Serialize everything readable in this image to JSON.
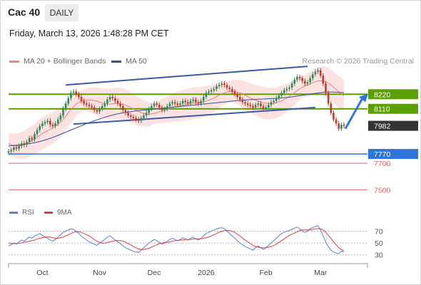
{
  "header": {
    "instrument": "Cac 40",
    "timeframe": "DAILY",
    "datetime": "Friday, March 13, 2026 1:48:28 PM CET"
  },
  "legend": {
    "ma20": "MA 20 + Bollinger Bands",
    "ma50": "MA 50",
    "credit": "Research © 2026 Trading Central"
  },
  "rsi_legend": {
    "rsi": "RSI",
    "ma": "9MA"
  },
  "colors": {
    "candle_up": "#2e8b57",
    "candle_down": "#c0392b",
    "bollinger_fill": "#fde2e2",
    "ma20": "#f08080",
    "ma50": "#2f5597",
    "channel": "#3a5ba9",
    "support_resistance_green": "#5aa000",
    "pivot_blue": "#2e75d8",
    "last_price_tag": "#333333",
    "target_red": "#e06666",
    "rsi": "#5b7fd1",
    "rsi_ma": "#e23b3b"
  },
  "chart_data": [
    {
      "type": "candlestick",
      "title": "Cac 40",
      "x_tick_labels": [
        "Oct",
        "Nov",
        "Dec",
        "2026",
        "Feb",
        "Mar"
      ],
      "y_range_approx": [
        7400,
        8420
      ],
      "last_price": 7982,
      "levels": [
        {
          "value": 8220,
          "label": "8220",
          "style": "green-band"
        },
        {
          "value": 8110,
          "label": "8110",
          "style": "green-band"
        },
        {
          "value": 7982,
          "label": "7982",
          "style": "last-price"
        },
        {
          "value": 7770,
          "label": "7770",
          "style": "pivot"
        },
        {
          "value": 7700,
          "label": "7700",
          "style": "target"
        },
        {
          "value": 7500,
          "label": "7500",
          "style": "target"
        }
      ],
      "series": [
        {
          "name": "Close",
          "values": [
            7790,
            7800,
            7820,
            7810,
            7830,
            7850,
            7840,
            7860,
            7890,
            7880,
            7920,
            7950,
            7980,
            8000,
            8010,
            8020,
            7990,
            7980,
            8000,
            8030,
            8060,
            8110,
            8150,
            8190,
            8230,
            8240,
            8220,
            8200,
            8170,
            8150,
            8140,
            8130,
            8120,
            8100,
            8090,
            8110,
            8130,
            8150,
            8180,
            8200,
            8190,
            8170,
            8150,
            8130,
            8100,
            8080,
            8060,
            8050,
            8040,
            8030,
            8020,
            8040,
            8060,
            8080,
            8110,
            8130,
            8150,
            8140,
            8120,
            8100,
            8110,
            8130,
            8150,
            8160,
            8150,
            8140,
            8150,
            8170,
            8160,
            8150,
            8170,
            8180,
            8160,
            8150,
            8170,
            8200,
            8230,
            8240,
            8250,
            8260,
            8280,
            8290,
            8300,
            8290,
            8270,
            8260,
            8240,
            8220,
            8200,
            8180,
            8160,
            8150,
            8140,
            8130,
            8120,
            8140,
            8150,
            8130,
            8110,
            8120,
            8140,
            8160,
            8170,
            8190,
            8210,
            8230,
            8250,
            8260,
            8270,
            8300,
            8330,
            8350,
            8340,
            8320,
            8300,
            8310,
            8340,
            8370,
            8390,
            8400,
            8360,
            8300,
            8230,
            8150,
            8080,
            8030,
            8000,
            7960,
            7990,
            7982
          ]
        },
        {
          "name": "MA 20",
          "values": [
            7850,
            7840,
            7835,
            7830,
            7830,
            7835,
            7840,
            7850,
            7860,
            7870,
            7880,
            7895,
            7910,
            7925,
            7935,
            7945,
            7955,
            7965,
            7980,
            7995,
            8010,
            8030,
            8055,
            8080,
            8105,
            8125,
            8145,
            8160,
            8170,
            8175,
            8178,
            8178,
            8176,
            8172,
            8168,
            8162,
            8156,
            8150,
            8146,
            8145,
            8148,
            8150,
            8150,
            8148,
            8144,
            8138,
            8130,
            8120,
            8110,
            8100,
            8090,
            8082,
            8076,
            8072,
            8070,
            8072,
            8076,
            8082,
            8088,
            8094,
            8100,
            8106,
            8112,
            8118,
            8124,
            8128,
            8132,
            8136,
            8140,
            8144,
            8148,
            8152,
            8154,
            8156,
            8158,
            8162,
            8168,
            8175,
            8183,
            8192,
            8202,
            8212,
            8222,
            8230,
            8236,
            8240,
            8242,
            8240,
            8236,
            8230,
            8222,
            8212,
            8202,
            8192,
            8183,
            8175,
            8168,
            8162,
            8156,
            8152,
            8150,
            8150,
            8152,
            8156,
            8162,
            8170,
            8180,
            8192,
            8205,
            8218,
            8232,
            8246,
            8260,
            8272,
            8282,
            8290,
            8298,
            8306,
            8314,
            8320,
            8322,
            8320,
            8314,
            8304,
            8290,
            8274,
            8256,
            8238,
            8222,
            8208
          ]
        },
        {
          "name": "MA 50",
          "values": [
            7830,
            7832,
            7834,
            7836,
            7838,
            7840,
            7842,
            7845,
            7848,
            7851,
            7855,
            7859,
            7864,
            7869,
            7875,
            7881,
            7888,
            7895,
            7902,
            7910,
            7918,
            7926,
            7934,
            7942,
            7950,
            7958,
            7966,
            7974,
            7982,
            7990,
            7998,
            8006,
            8013,
            8020,
            8027,
            8034,
            8040,
            8046,
            8052,
            8058,
            8063,
            8068,
            8072,
            8076,
            8080,
            8083,
            8086,
            8089,
            8092,
            8094,
            8096,
            8098,
            8100,
            8102,
            8104,
            8106,
            8108,
            8110,
            8112,
            8114,
            8116,
            8118,
            8120,
            8122,
            8124,
            8126,
            8128,
            8130,
            8132,
            8134,
            8136,
            8138,
            8140,
            8142,
            8144,
            8146,
            8148,
            8150,
            8152,
            8154,
            8156,
            8158,
            8160,
            8162,
            8164,
            8166,
            8168,
            8170,
            8172,
            8174,
            8176,
            8177,
            8178,
            8179,
            8180,
            8181,
            8182,
            8183,
            8184,
            8185,
            8186,
            8187,
            8188,
            8189,
            8190,
            8192,
            8194,
            8196,
            8198,
            8200,
            8203,
            8206,
            8209,
            8212,
            8215,
            8218,
            8221,
            8224,
            8227,
            8230,
            8232,
            8234,
            8235,
            8236,
            8236,
            8236,
            8235,
            8234,
            8233,
            8232
          ]
        }
      ]
    },
    {
      "type": "line",
      "title": "RSI",
      "y_tick_labels": [
        "70",
        "50",
        "30"
      ],
      "ylim": [
        20,
        85
      ],
      "series": [
        {
          "name": "RSI",
          "values": [
            45,
            47,
            50,
            48,
            52,
            55,
            53,
            57,
            60,
            58,
            62,
            64,
            66,
            63,
            60,
            58,
            55,
            53,
            56,
            60,
            64,
            68,
            70,
            72,
            74,
            73,
            70,
            66,
            62,
            58,
            55,
            52,
            50,
            48,
            46,
            50,
            53,
            56,
            60,
            62,
            59,
            55,
            52,
            49,
            45,
            42,
            40,
            38,
            36,
            35,
            34,
            38,
            42,
            46,
            50,
            53,
            56,
            54,
            51,
            48,
            50,
            53,
            56,
            58,
            56,
            54,
            56,
            59,
            57,
            55,
            58,
            60,
            57,
            55,
            58,
            62,
            66,
            68,
            70,
            72,
            74,
            75,
            76,
            74,
            70,
            66,
            62,
            58,
            54,
            50,
            47,
            44,
            42,
            40,
            38,
            42,
            45,
            42,
            39,
            42,
            46,
            50,
            54,
            58,
            62,
            66,
            68,
            70,
            71,
            73,
            75,
            77,
            74,
            70,
            68,
            70,
            74,
            76,
            78,
            79,
            72,
            62,
            52,
            44,
            38,
            35,
            33,
            32,
            36,
            35
          ]
        },
        {
          "name": "9MA",
          "values": [
            50,
            49,
            49,
            49,
            50,
            50,
            51,
            52,
            53,
            54,
            55,
            57,
            58,
            59,
            60,
            60,
            60,
            59,
            58,
            58,
            59,
            60,
            62,
            64,
            66,
            68,
            69,
            69,
            68,
            66,
            64,
            62,
            59,
            56,
            53,
            51,
            50,
            50,
            51,
            52,
            53,
            54,
            54,
            54,
            53,
            51,
            49,
            47,
            44,
            42,
            40,
            39,
            39,
            40,
            41,
            43,
            45,
            47,
            49,
            50,
            51,
            51,
            52,
            53,
            54,
            54,
            55,
            55,
            56,
            56,
            56,
            57,
            57,
            57,
            57,
            58,
            59,
            60,
            62,
            64,
            66,
            68,
            70,
            71,
            71,
            71,
            70,
            68,
            65,
            62,
            58,
            55,
            52,
            49,
            46,
            44,
            43,
            42,
            42,
            42,
            43,
            44,
            46,
            48,
            51,
            54,
            57,
            60,
            63,
            65,
            67,
            69,
            71,
            72,
            72,
            72,
            72,
            73,
            74,
            74,
            74,
            72,
            68,
            63,
            58,
            52,
            47,
            42,
            39,
            37
          ]
        }
      ]
    }
  ]
}
